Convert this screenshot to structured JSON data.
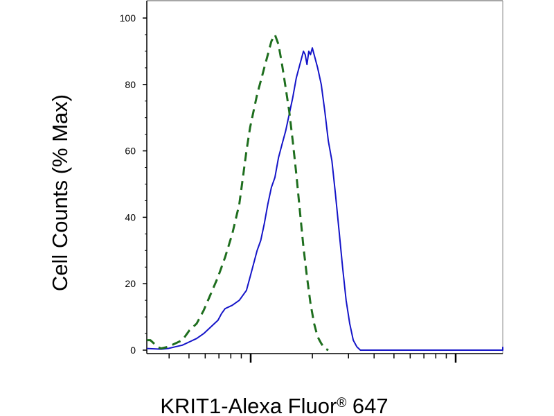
{
  "chart_data": {
    "type": "line",
    "xlabel": "KRIT1-Alexa Fluor",
    "xlabel_sup": "®",
    "xlabel_tail": " 647",
    "ylabel": "Cell Counts (% Max)",
    "ylim": [
      0,
      100
    ],
    "y_ticks": [
      "0",
      "20",
      "40",
      "60",
      "80",
      "100"
    ],
    "grid": false,
    "x_scale": "log",
    "series": [
      {
        "color": "#1414c8",
        "style": "solid",
        "points": [
          [
            0.0,
            0.5
          ],
          [
            0.04,
            0.3
          ],
          [
            0.06,
            0.5
          ],
          [
            0.08,
            1
          ],
          [
            0.1,
            1.5
          ],
          [
            0.12,
            2.5
          ],
          [
            0.14,
            3.5
          ],
          [
            0.16,
            5
          ],
          [
            0.18,
            7
          ],
          [
            0.2,
            9
          ],
          [
            0.21,
            11
          ],
          [
            0.22,
            12.5
          ],
          [
            0.24,
            13.5
          ],
          [
            0.26,
            15
          ],
          [
            0.28,
            18
          ],
          [
            0.29,
            22
          ],
          [
            0.3,
            26
          ],
          [
            0.31,
            30
          ],
          [
            0.32,
            33
          ],
          [
            0.33,
            38
          ],
          [
            0.34,
            44
          ],
          [
            0.35,
            49
          ],
          [
            0.36,
            52
          ],
          [
            0.37,
            58
          ],
          [
            0.38,
            62
          ],
          [
            0.39,
            66
          ],
          [
            0.4,
            71
          ],
          [
            0.41,
            76
          ],
          [
            0.42,
            82
          ],
          [
            0.43,
            86
          ],
          [
            0.44,
            90
          ],
          [
            0.445,
            89
          ],
          [
            0.45,
            86
          ],
          [
            0.455,
            90
          ],
          [
            0.46,
            89
          ],
          [
            0.465,
            91
          ],
          [
            0.47,
            89
          ],
          [
            0.48,
            85
          ],
          [
            0.49,
            80
          ],
          [
            0.5,
            72
          ],
          [
            0.51,
            63
          ],
          [
            0.52,
            57
          ],
          [
            0.53,
            47
          ],
          [
            0.54,
            36
          ],
          [
            0.55,
            25
          ],
          [
            0.56,
            15
          ],
          [
            0.57,
            8
          ],
          [
            0.58,
            3
          ],
          [
            0.59,
            1
          ],
          [
            0.6,
            0
          ],
          [
            1.0,
            0
          ],
          [
            1.02,
            1
          ]
        ]
      },
      {
        "color": "#1e6e1e",
        "style": "dashed",
        "points": [
          [
            0.0,
            3
          ],
          [
            0.01,
            3
          ],
          [
            0.02,
            2
          ],
          [
            0.03,
            1
          ],
          [
            0.04,
            0.5
          ],
          [
            0.06,
            1
          ],
          [
            0.08,
            2
          ],
          [
            0.1,
            3
          ],
          [
            0.12,
            6
          ],
          [
            0.14,
            8
          ],
          [
            0.16,
            12
          ],
          [
            0.18,
            17
          ],
          [
            0.2,
            22
          ],
          [
            0.22,
            28
          ],
          [
            0.24,
            35
          ],
          [
            0.26,
            44
          ],
          [
            0.27,
            52
          ],
          [
            0.28,
            60
          ],
          [
            0.29,
            67
          ],
          [
            0.3,
            72
          ],
          [
            0.31,
            77
          ],
          [
            0.32,
            81
          ],
          [
            0.33,
            85
          ],
          [
            0.34,
            89
          ],
          [
            0.35,
            93
          ],
          [
            0.36,
            95
          ],
          [
            0.37,
            92
          ],
          [
            0.38,
            86
          ],
          [
            0.39,
            79
          ],
          [
            0.4,
            72
          ],
          [
            0.41,
            63
          ],
          [
            0.42,
            53
          ],
          [
            0.43,
            42
          ],
          [
            0.44,
            31
          ],
          [
            0.45,
            22
          ],
          [
            0.46,
            14
          ],
          [
            0.47,
            8
          ],
          [
            0.48,
            4
          ],
          [
            0.49,
            2
          ],
          [
            0.5,
            0.5
          ],
          [
            0.51,
            0
          ]
        ]
      }
    ]
  }
}
